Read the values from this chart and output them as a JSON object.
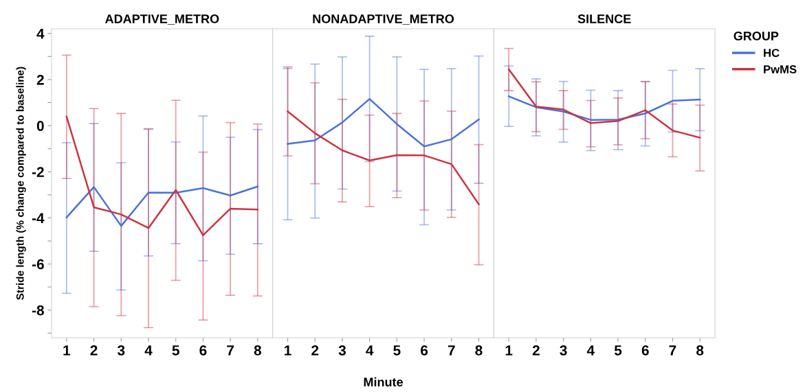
{
  "chart_data": [
    {
      "type": "line",
      "title": "ADAPTIVE_METRO",
      "ylabel": "Stride length (% change compared to baseline)",
      "legend_title": "GROUP",
      "categories": [
        "1",
        "2",
        "3",
        "4",
        "5",
        "6",
        "7",
        "8"
      ],
      "ylim": [
        -9.2,
        4.2
      ],
      "yticks": [
        {
          "value": -9,
          "label": null
        },
        -8,
        {
          "value": -7,
          "label": null
        },
        -6,
        {
          "value": -5,
          "label": null
        },
        -4,
        {
          "value": -3,
          "label": null
        },
        -2,
        {
          "value": -1,
          "label": null
        },
        0,
        {
          "value": 1,
          "label": null
        },
        2,
        {
          "value": 3,
          "label": null
        },
        4
      ],
      "grid": false,
      "legend": "right",
      "marker": "none",
      "line_style": "solid",
      "series": [
        {
          "name": "HC",
          "color": "#4a72d8",
          "values": [
            -3.98,
            -2.66,
            -4.35,
            -2.9,
            -2.91,
            -2.71,
            -3.03,
            -2.64
          ],
          "errors": [
            [
              -7.27,
              -0.74
            ],
            [
              -5.45,
              0.09
            ],
            [
              -7.13,
              -1.61
            ],
            [
              -5.65,
              -0.16
            ],
            [
              -5.12,
              -0.71
            ],
            [
              -5.86,
              0.42
            ],
            [
              -5.58,
              -0.5
            ],
            [
              -5.12,
              -0.17
            ]
          ]
        },
        {
          "name": "PwMS",
          "color": "#cc3340",
          "values": [
            0.39,
            -3.54,
            -3.85,
            -4.44,
            -2.79,
            -4.75,
            -3.6,
            -3.64
          ],
          "errors": [
            [
              -2.29,
              3.06
            ],
            [
              -7.85,
              0.74
            ],
            [
              -8.24,
              0.53
            ],
            [
              -8.76,
              -0.13
            ],
            [
              -6.71,
              1.1
            ],
            [
              -8.43,
              -1.15
            ],
            [
              -7.36,
              0.13
            ],
            [
              -7.39,
              0.07
            ]
          ]
        }
      ]
    },
    {
      "type": "line",
      "title": "NONADAPTIVE_METRO",
      "xlabel": "Minute",
      "categories": [
        "1",
        "2",
        "3",
        "4",
        "5",
        "6",
        "7",
        "8"
      ],
      "ylim": [
        -9.2,
        4.2
      ],
      "tick_labels": "x",
      "grid": false,
      "legend": false,
      "marker": "none",
      "line_style": "solid",
      "series": [
        {
          "color": "#4a72d8",
          "values": [
            -0.79,
            -0.64,
            0.14,
            1.16,
            0.07,
            -0.9,
            -0.59,
            0.27
          ],
          "errors": [
            [
              -4.08,
              2.48
            ],
            [
              -4.01,
              2.67
            ],
            [
              -2.75,
              2.98
            ],
            [
              -1.56,
              3.88
            ],
            [
              -2.84,
              2.98
            ],
            [
              -4.3,
              2.44
            ],
            [
              -3.66,
              2.47
            ],
            [
              -2.5,
              3.02
            ]
          ]
        },
        {
          "color": "#cc3340",
          "values": [
            0.62,
            -0.33,
            -1.07,
            -1.51,
            -1.28,
            -1.29,
            -1.67,
            -3.41
          ],
          "errors": [
            [
              -1.31,
              2.55
            ],
            [
              -2.52,
              1.86
            ],
            [
              -3.31,
              1.14
            ],
            [
              -3.51,
              0.46
            ],
            [
              -3.12,
              0.53
            ],
            [
              -3.66,
              1.07
            ],
            [
              -3.98,
              0.63
            ],
            [
              -6.03,
              -0.82
            ]
          ]
        }
      ]
    },
    {
      "type": "line",
      "title": "SILENCE",
      "categories": [
        "1",
        "2",
        "3",
        "4",
        "5",
        "6",
        "7",
        "8"
      ],
      "ylim": [
        -9.2,
        4.2
      ],
      "tick_labels": "x",
      "grid": false,
      "legend": false,
      "marker": "none",
      "line_style": "solid",
      "series": [
        {
          "color": "#4a72d8",
          "values": [
            1.27,
            0.8,
            0.61,
            0.25,
            0.26,
            0.53,
            1.08,
            1.13
          ],
          "errors": [
            [
              -0.03,
              2.59
            ],
            [
              -0.44,
              2.03
            ],
            [
              -0.71,
              1.92
            ],
            [
              -1.08,
              1.54
            ],
            [
              -1.04,
              1.52
            ],
            [
              -0.88,
              1.92
            ],
            [
              -0.28,
              2.4
            ],
            [
              -0.22,
              2.47
            ]
          ]
        },
        {
          "color": "#cc3340",
          "values": [
            2.44,
            0.83,
            0.7,
            0.11,
            0.2,
            0.67,
            -0.21,
            -0.52
          ],
          "errors": [
            [
              1.52,
              3.35
            ],
            [
              -0.26,
              1.9
            ],
            [
              -0.16,
              1.52
            ],
            [
              -0.92,
              1.09
            ],
            [
              -0.83,
              1.2
            ],
            [
              -0.57,
              1.91
            ],
            [
              -1.35,
              0.94
            ],
            [
              -1.96,
              0.89
            ]
          ]
        }
      ]
    }
  ]
}
